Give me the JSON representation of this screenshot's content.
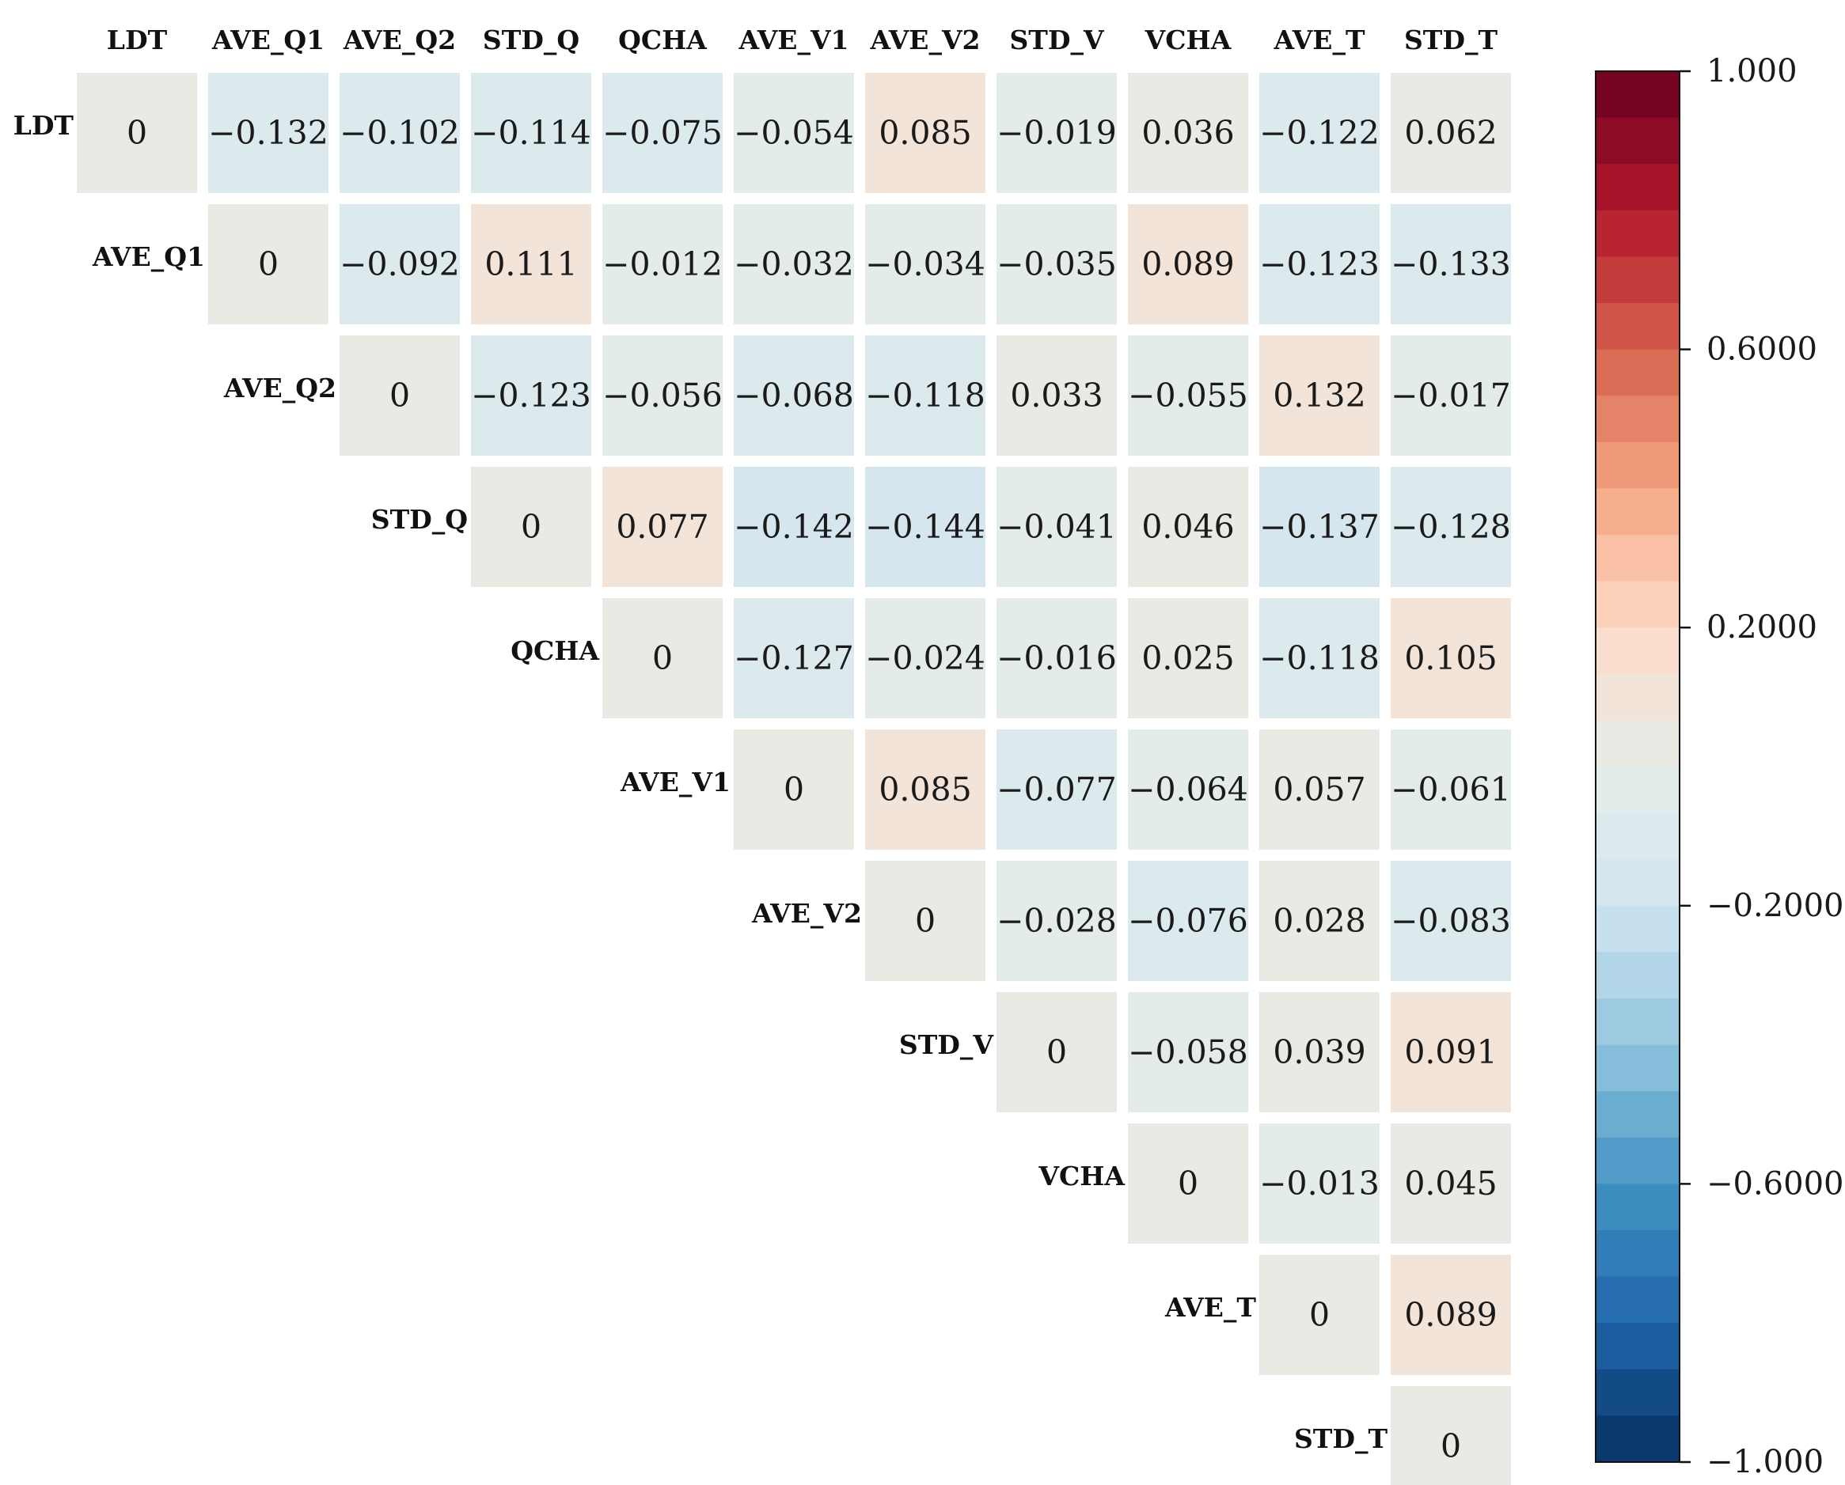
{
  "chart_data": {
    "type": "heatmap",
    "title": "",
    "variables": [
      "LDT",
      "AVE_Q1",
      "AVE_Q2",
      "STD_Q",
      "QCHA",
      "AVE_V1",
      "AVE_V2",
      "STD_V",
      "VCHA",
      "AVE_T",
      "STD_T"
    ],
    "matrix": [
      [
        0,
        -0.132,
        -0.102,
        -0.114,
        -0.075,
        -0.054,
        0.085,
        -0.019,
        0.036,
        -0.122,
        0.062
      ],
      [
        null,
        0,
        -0.092,
        0.111,
        -0.012,
        -0.032,
        -0.034,
        -0.035,
        0.089,
        -0.123,
        -0.133
      ],
      [
        null,
        null,
        0,
        -0.123,
        -0.056,
        -0.068,
        -0.118,
        0.033,
        -0.055,
        0.132,
        -0.017
      ],
      [
        null,
        null,
        null,
        0,
        0.077,
        -0.142,
        -0.144,
        -0.041,
        0.046,
        -0.137,
        -0.128
      ],
      [
        null,
        null,
        null,
        null,
        0,
        -0.127,
        -0.024,
        -0.016,
        0.025,
        -0.118,
        0.105
      ],
      [
        null,
        null,
        null,
        null,
        null,
        0,
        0.085,
        -0.077,
        -0.064,
        0.057,
        -0.061
      ],
      [
        null,
        null,
        null,
        null,
        null,
        null,
        0,
        -0.028,
        -0.076,
        0.028,
        -0.083
      ],
      [
        null,
        null,
        null,
        null,
        null,
        null,
        null,
        0,
        -0.058,
        0.039,
        0.091
      ],
      [
        null,
        null,
        null,
        null,
        null,
        null,
        null,
        null,
        0,
        -0.013,
        0.045
      ],
      [
        null,
        null,
        null,
        null,
        null,
        null,
        null,
        null,
        null,
        0,
        0.089
      ],
      [
        null,
        null,
        null,
        null,
        null,
        null,
        null,
        null,
        null,
        null,
        0
      ]
    ],
    "display_values": [
      [
        "0",
        "−0.132",
        "−0.102",
        "−0.114",
        "−0.075",
        "−0.054",
        "0.085",
        "−0.019",
        "0.036",
        "−0.122",
        "0.062"
      ],
      [
        "",
        "0",
        "−0.092",
        "0.111",
        "−0.012",
        "−0.032",
        "−0.034",
        "−0.035",
        "0.089",
        "−0.123",
        "−0.133"
      ],
      [
        "",
        "",
        "0",
        "−0.123",
        "−0.056",
        "−0.068",
        "−0.118",
        "0.033",
        "−0.055",
        "0.132",
        "−0.017"
      ],
      [
        "",
        "",
        "",
        "0",
        "0.077",
        "−0.142",
        "−0.144",
        "−0.041",
        "0.046",
        "−0.137",
        "−0.128"
      ],
      [
        "",
        "",
        "",
        "",
        "0",
        "−0.127",
        "−0.024",
        "−0.016",
        "0.025",
        "−0.118",
        "0.105"
      ],
      [
        "",
        "",
        "",
        "",
        "",
        "0",
        "0.085",
        "−0.077",
        "−0.064",
        "0.057",
        "−0.061"
      ],
      [
        "",
        "",
        "",
        "",
        "",
        "",
        "0",
        "−0.028",
        "−0.076",
        "0.028",
        "−0.083"
      ],
      [
        "",
        "",
        "",
        "",
        "",
        "",
        "",
        "0",
        "−0.058",
        "0.039",
        "0.091"
      ],
      [
        "",
        "",
        "",
        "",
        "",
        "",
        "",
        "",
        "0",
        "−0.013",
        "0.045"
      ],
      [
        "",
        "",
        "",
        "",
        "",
        "",
        "",
        "",
        "",
        "0",
        "0.089"
      ],
      [
        "",
        "",
        "",
        "",
        "",
        "",
        "",
        "",
        "",
        "",
        "0"
      ]
    ],
    "colorbar": {
      "range": [
        -1.0,
        1.0
      ],
      "ticks": [
        1.0,
        0.6,
        0.2,
        -0.2,
        -0.6,
        -1.0
      ],
      "tick_labels": [
        "1.000",
        "0.6000",
        "0.2000",
        "−0.2000",
        "−0.6000",
        "−1.000"
      ],
      "colormap": "RdBu_r",
      "n_levels": 30,
      "placement": "right"
    },
    "colormap_stops": [
      "#053061",
      "#2166ac",
      "#4393c3",
      "#92c5de",
      "#d1e5f0",
      "#e6ecea",
      "#fddbc7",
      "#f4a582",
      "#d6604d",
      "#b2182b",
      "#67001f"
    ],
    "xlabel": "",
    "ylabel": "",
    "grid": false
  }
}
